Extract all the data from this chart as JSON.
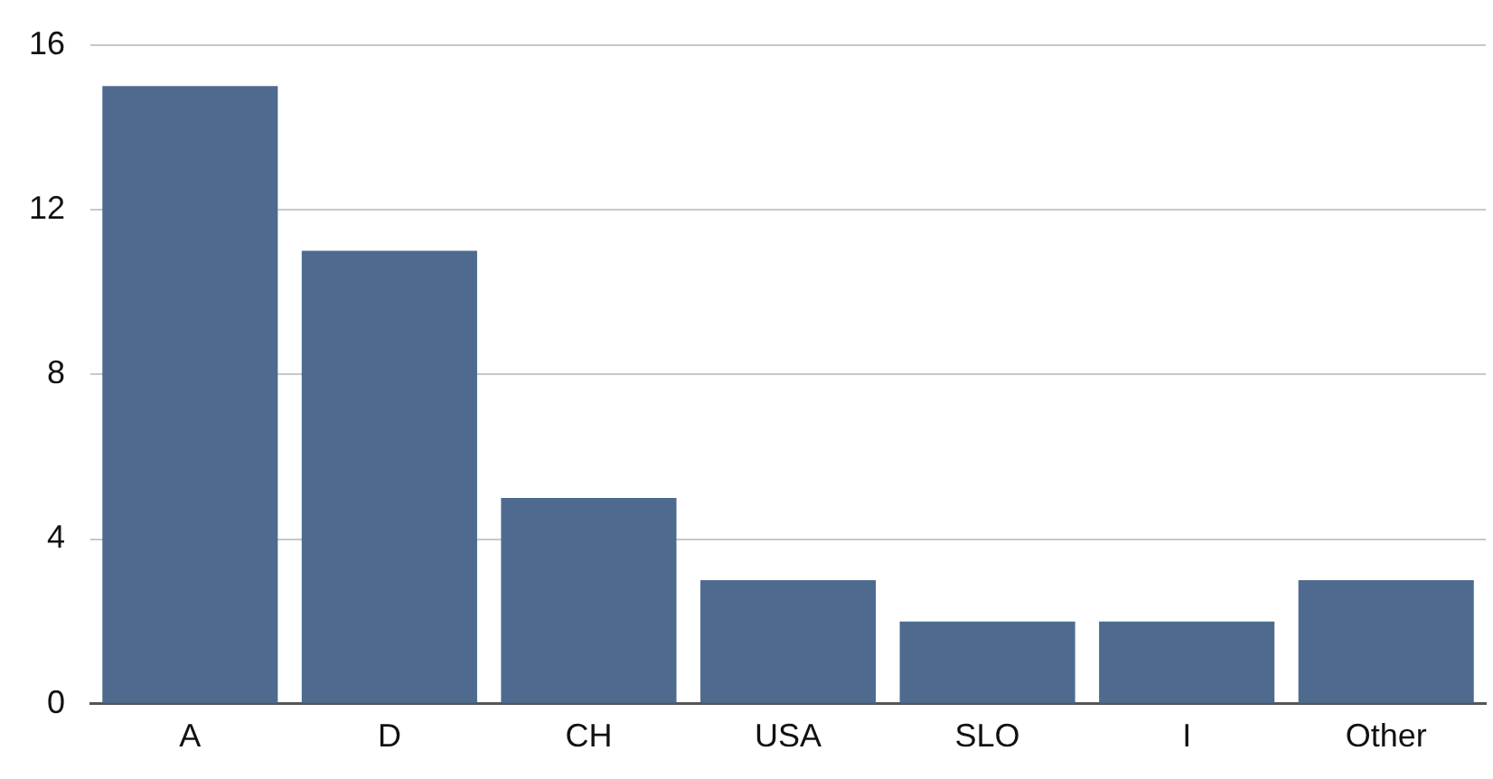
{
  "chart_data": {
    "type": "bar",
    "categories": [
      "A",
      "D",
      "CH",
      "USA",
      "SLO",
      "I",
      "Other"
    ],
    "values": [
      15,
      11,
      5,
      3,
      2,
      2,
      3
    ],
    "color": "#4e6b8f",
    "ylim": [
      0,
      16
    ],
    "yticks": [
      0,
      4,
      8,
      12,
      16
    ],
    "grid": "y",
    "legend": false
  }
}
